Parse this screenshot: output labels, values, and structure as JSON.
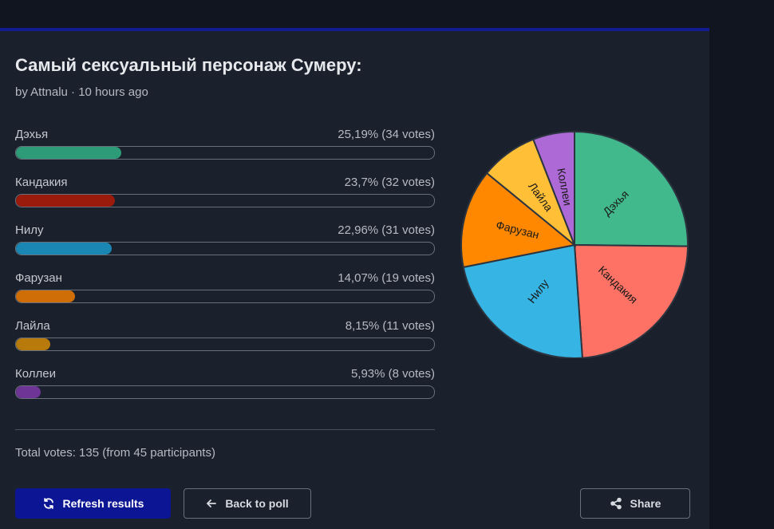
{
  "poll": {
    "title": "Самый сексуальный персонаж Сумеру:",
    "meta": "by Attnalu · 10 hours ago"
  },
  "results": [
    {
      "label": "Дэхья",
      "stats": "25,19% (34 votes)",
      "percent": 25.19,
      "bar_color": "#2e9b78"
    },
    {
      "label": "Кандакия",
      "stats": "23,7% (32 votes)",
      "percent": 23.7,
      "bar_color": "#9a1a0c"
    },
    {
      "label": "Нилу",
      "stats": "22,96% (31 votes)",
      "percent": 22.96,
      "bar_color": "#1a86b3"
    },
    {
      "label": "Фарузан",
      "stats": "14,07% (19 votes)",
      "percent": 14.07,
      "bar_color": "#cf6e07"
    },
    {
      "label": "Лайла",
      "stats": "8,15% (11 votes)",
      "percent": 8.15,
      "bar_color": "#b77a0b"
    },
    {
      "label": "Коллеи",
      "stats": "5,93% (8 votes)",
      "percent": 5.93,
      "bar_color": "#6e3596"
    }
  ],
  "total": "Total votes: 135 (from 45 participants)",
  "buttons": {
    "refresh": "Refresh results",
    "back": "Back to poll",
    "share": "Share"
  },
  "icons": {
    "refresh": "refresh-icon",
    "back": "arrow-left-icon",
    "share": "share-icon"
  },
  "chart_data": {
    "type": "pie",
    "slices": [
      {
        "label": "Дэхья",
        "value": 34,
        "color": "#41b98d"
      },
      {
        "label": "Кандакия",
        "value": 32,
        "color": "#fd7264"
      },
      {
        "label": "Нилу",
        "value": 31,
        "color": "#36b4e4"
      },
      {
        "label": "Фарузан",
        "value": 19,
        "color": "#ff8800"
      },
      {
        "label": "Лайла",
        "value": 11,
        "color": "#ffbf37"
      },
      {
        "label": "Коллеи",
        "value": 8,
        "color": "#ad6ad6"
      }
    ]
  }
}
